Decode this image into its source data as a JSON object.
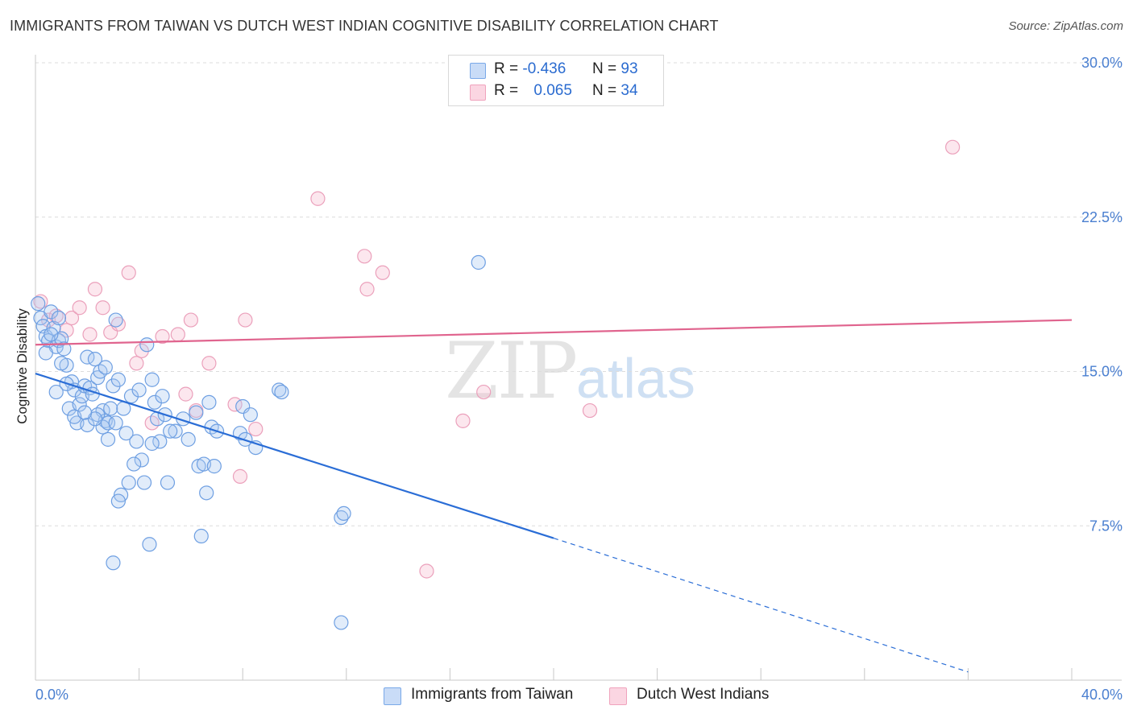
{
  "header": {
    "title": "IMMIGRANTS FROM TAIWAN VS DUTCH WEST INDIAN COGNITIVE DISABILITY CORRELATION CHART",
    "source": "Source: ZipAtlas.com"
  },
  "watermark": {
    "part1": "ZIP",
    "part2": "atlas"
  },
  "legend": {
    "rows": [
      {
        "r_label": "R =",
        "r_value": "-0.436",
        "n_label": "N =",
        "n_value": "93",
        "color": "#a9c8f2"
      },
      {
        "r_label": "R =",
        "r_value": "0.065",
        "n_label": "N =",
        "n_value": "34",
        "color": "#f6b9cd"
      }
    ]
  },
  "bottom_legend": {
    "items": [
      {
        "label": "Immigrants from Taiwan",
        "color": "#a9c8f2"
      },
      {
        "label": "Dutch West Indians",
        "color": "#f6b9cd"
      }
    ]
  },
  "chart_data": {
    "type": "scatter",
    "title": "IMMIGRANTS FROM TAIWAN VS DUTCH WEST INDIAN COGNITIVE DISABILITY CORRELATION CHART",
    "xlabel": "",
    "ylabel": "Cognitive Disability",
    "xlim": [
      0,
      40
    ],
    "ylim": [
      0,
      30
    ],
    "x_tick_labels": [
      "0.0%",
      "40.0%"
    ],
    "y_ticks": [
      7.5,
      15.0,
      22.5,
      30.0
    ],
    "y_tick_labels": [
      "7.5%",
      "15.0%",
      "22.5%",
      "30.0%"
    ],
    "grid": "horizontal dashed",
    "legend_position": "top-center",
    "colors": {
      "taiwan": "#2a6dd6",
      "dutch": "#e0648e"
    },
    "series": [
      {
        "name": "Immigrants from Taiwan",
        "color": "#7aa9e8",
        "trend": {
          "x0": 0,
          "y0": 14.9,
          "x1": 20,
          "y1": 6.9,
          "dashed_to_x": 36,
          "dashed_y": 0.4
        },
        "points": [
          [
            0.1,
            18.3
          ],
          [
            0.2,
            17.6
          ],
          [
            0.3,
            17.2
          ],
          [
            0.4,
            16.7
          ],
          [
            0.5,
            16.5
          ],
          [
            0.6,
            17.9
          ],
          [
            0.7,
            17.1
          ],
          [
            0.8,
            16.2
          ],
          [
            0.9,
            16.5
          ],
          [
            1.0,
            16.6
          ],
          [
            0.9,
            17.6
          ],
          [
            1.1,
            16.1
          ],
          [
            1.2,
            15.3
          ],
          [
            1.4,
            14.5
          ],
          [
            1.3,
            13.2
          ],
          [
            1.5,
            14.1
          ],
          [
            1.6,
            12.5
          ],
          [
            1.7,
            13.4
          ],
          [
            1.8,
            13.8
          ],
          [
            1.9,
            14.3
          ],
          [
            2.0,
            15.7
          ],
          [
            2.1,
            14.2
          ],
          [
            2.3,
            15.6
          ],
          [
            2.2,
            13.9
          ],
          [
            2.4,
            14.7
          ],
          [
            2.5,
            15.0
          ],
          [
            2.6,
            13.1
          ],
          [
            2.7,
            12.6
          ],
          [
            2.8,
            11.7
          ],
          [
            2.9,
            13.2
          ],
          [
            3.0,
            14.3
          ],
          [
            2.4,
            12.9
          ],
          [
            2.6,
            12.3
          ],
          [
            3.1,
            17.5
          ],
          [
            3.2,
            14.6
          ],
          [
            3.4,
            13.2
          ],
          [
            3.5,
            12.0
          ],
          [
            3.3,
            9.0
          ],
          [
            3.6,
            9.6
          ],
          [
            3.7,
            13.8
          ],
          [
            3.9,
            11.6
          ],
          [
            4.0,
            14.1
          ],
          [
            4.2,
            9.6
          ],
          [
            4.1,
            10.7
          ],
          [
            4.4,
            6.6
          ],
          [
            4.5,
            14.6
          ],
          [
            4.6,
            13.5
          ],
          [
            4.7,
            12.7
          ],
          [
            4.8,
            11.6
          ],
          [
            4.9,
            13.8
          ],
          [
            5.0,
            12.9
          ],
          [
            5.1,
            9.6
          ],
          [
            4.3,
            16.3
          ],
          [
            3.8,
            10.5
          ],
          [
            5.4,
            12.1
          ],
          [
            5.7,
            12.7
          ],
          [
            5.9,
            11.7
          ],
          [
            6.2,
            13.0
          ],
          [
            6.3,
            10.4
          ],
          [
            6.5,
            10.5
          ],
          [
            6.6,
            9.1
          ],
          [
            6.7,
            13.5
          ],
          [
            6.8,
            12.3
          ],
          [
            6.9,
            10.4
          ],
          [
            7.0,
            12.1
          ],
          [
            7.9,
            12.0
          ],
          [
            8.0,
            13.3
          ],
          [
            8.1,
            11.7
          ],
          [
            8.3,
            12.9
          ],
          [
            8.5,
            11.3
          ],
          [
            9.4,
            14.1
          ],
          [
            9.5,
            14.0
          ],
          [
            11.8,
            7.9
          ],
          [
            11.9,
            8.1
          ],
          [
            11.8,
            2.8
          ],
          [
            17.1,
            20.3
          ],
          [
            6.4,
            7.0
          ],
          [
            3.0,
            5.7
          ],
          [
            3.2,
            8.7
          ],
          [
            2.0,
            12.4
          ],
          [
            1.5,
            12.8
          ],
          [
            1.2,
            14.4
          ],
          [
            2.8,
            12.5
          ],
          [
            0.4,
            15.9
          ],
          [
            0.6,
            16.8
          ],
          [
            1.0,
            15.4
          ],
          [
            2.3,
            12.7
          ],
          [
            5.2,
            12.1
          ],
          [
            3.1,
            12.5
          ],
          [
            1.9,
            13.0
          ],
          [
            2.7,
            15.2
          ],
          [
            0.8,
            14.0
          ],
          [
            4.5,
            11.5
          ]
        ]
      },
      {
        "name": "Dutch West Indians",
        "color": "#f0a3bd",
        "trend": {
          "x0": 0,
          "y0": 16.3,
          "x1": 40,
          "y1": 17.5
        },
        "points": [
          [
            0.2,
            18.4
          ],
          [
            0.5,
            17.5
          ],
          [
            0.8,
            17.7
          ],
          [
            1.2,
            17.0
          ],
          [
            1.4,
            17.6
          ],
          [
            1.7,
            18.1
          ],
          [
            2.1,
            16.8
          ],
          [
            2.3,
            19.0
          ],
          [
            2.6,
            18.1
          ],
          [
            2.9,
            16.9
          ],
          [
            3.2,
            17.3
          ],
          [
            3.6,
            19.8
          ],
          [
            3.9,
            15.4
          ],
          [
            4.1,
            16.0
          ],
          [
            4.5,
            12.5
          ],
          [
            4.9,
            16.7
          ],
          [
            5.5,
            16.8
          ],
          [
            5.8,
            13.9
          ],
          [
            6.0,
            17.5
          ],
          [
            6.2,
            13.1
          ],
          [
            6.7,
            15.4
          ],
          [
            7.7,
            13.4
          ],
          [
            7.9,
            9.9
          ],
          [
            8.1,
            17.5
          ],
          [
            8.5,
            12.2
          ],
          [
            10.9,
            23.4
          ],
          [
            12.7,
            20.6
          ],
          [
            12.8,
            19.0
          ],
          [
            13.4,
            19.8
          ],
          [
            15.1,
            5.3
          ],
          [
            16.5,
            12.6
          ],
          [
            17.3,
            14.0
          ],
          [
            21.4,
            13.1
          ],
          [
            35.4,
            25.9
          ]
        ]
      }
    ]
  }
}
